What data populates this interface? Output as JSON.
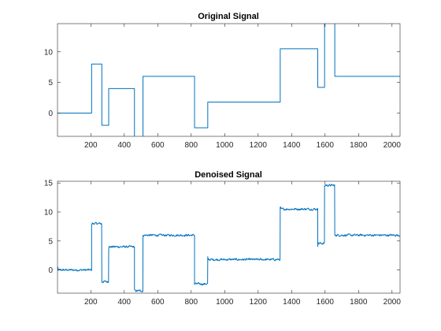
{
  "chart_data": [
    {
      "type": "line",
      "title": "Original Signal",
      "xlabel": "",
      "ylabel": "",
      "xlim": [
        1,
        2048
      ],
      "ylim": [
        -3.8,
        14.6
      ],
      "xticks": [
        200,
        400,
        600,
        800,
        1000,
        1200,
        1400,
        1600,
        1800,
        2000
      ],
      "yticks": [
        0,
        5,
        10
      ],
      "grid": false,
      "color": "#0072BD",
      "series": [
        {
          "kind": "piecewise-constant",
          "segments": [
            {
              "x0": 1,
              "x1": 205,
              "y": 0
            },
            {
              "x0": 205,
              "x1": 266,
              "y": 8
            },
            {
              "x0": 266,
              "x1": 307,
              "y": -2
            },
            {
              "x0": 307,
              "x1": 461,
              "y": 4
            },
            {
              "x0": 461,
              "x1": 512,
              "y": -4.5
            },
            {
              "x0": 512,
              "x1": 820,
              "y": 6
            },
            {
              "x0": 820,
              "x1": 899,
              "y": -2.4
            },
            {
              "x0": 899,
              "x1": 1332,
              "y": 1.8
            },
            {
              "x0": 1332,
              "x1": 1556,
              "y": 10.5
            },
            {
              "x0": 1556,
              "x1": 1597,
              "y": 4.2
            },
            {
              "x0": 1597,
              "x1": 1658,
              "y": 15
            },
            {
              "x0": 1658,
              "x1": 2048,
              "y": 6
            }
          ]
        }
      ]
    },
    {
      "type": "line",
      "title": "Denoised Signal",
      "xlabel": "",
      "ylabel": "",
      "xlim": [
        1,
        2048
      ],
      "ylim": [
        -4,
        15.3
      ],
      "xticks": [
        200,
        400,
        600,
        800,
        1000,
        1200,
        1400,
        1600,
        1800,
        2000
      ],
      "yticks": [
        0,
        5,
        10,
        15
      ],
      "grid": false,
      "color": "#0072BD",
      "series": [
        {
          "kind": "noisy-piecewise",
          "noise_amplitude": 0.3,
          "segments": [
            {
              "x0": 1,
              "x1": 205,
              "y": 0
            },
            {
              "x0": 205,
              "x1": 266,
              "y": 8
            },
            {
              "x0": 266,
              "x1": 307,
              "y": -2
            },
            {
              "x0": 307,
              "x1": 461,
              "y": 4
            },
            {
              "x0": 461,
              "x1": 512,
              "y": -3.6
            },
            {
              "x0": 512,
              "x1": 820,
              "y": 6
            },
            {
              "x0": 820,
              "x1": 899,
              "y": -2.4
            },
            {
              "x0": 899,
              "x1": 1332,
              "y": 1.8
            },
            {
              "x0": 1332,
              "x1": 1556,
              "y": 10.5
            },
            {
              "x0": 1556,
              "x1": 1597,
              "y": 4.6
            },
            {
              "x0": 1597,
              "x1": 1658,
              "y": 14.6
            },
            {
              "x0": 1658,
              "x1": 2048,
              "y": 6
            }
          ]
        }
      ]
    }
  ]
}
